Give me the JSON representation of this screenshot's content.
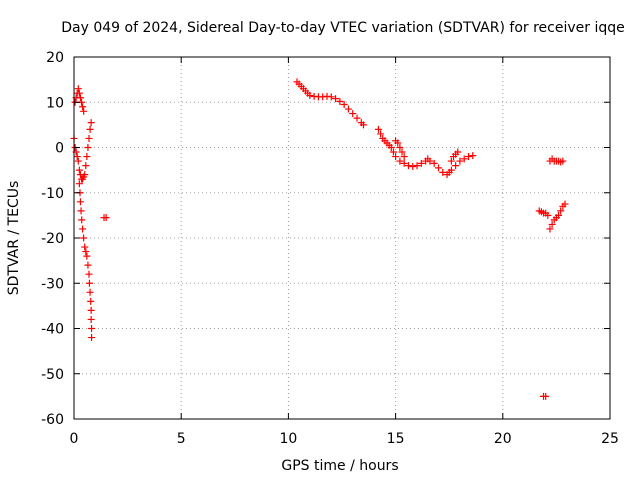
{
  "chart_data": {
    "type": "scatter",
    "title": "Day 049 of 2024, Sidereal Day-to-day VTEC variation (SDTVAR) for receiver iqqe",
    "xlabel": "GPS time / hours",
    "ylabel": "SDTVAR / TECUs",
    "xlim": [
      0,
      25
    ],
    "ylim": [
      -60,
      20
    ],
    "xticks": [
      "0",
      "5",
      "10",
      "15",
      "20",
      "25"
    ],
    "yticks": [
      "20",
      "10",
      "0",
      "-10",
      "-20",
      "-30",
      "-40",
      "-50",
      "-60"
    ],
    "grid": true,
    "marker": "plus",
    "series_color": "#ff0000",
    "segments": [
      {
        "name": "early-top",
        "points": [
          [
            0.05,
            10
          ],
          [
            0.1,
            11
          ],
          [
            0.15,
            12
          ],
          [
            0.2,
            13
          ],
          [
            0.25,
            12
          ],
          [
            0.3,
            11
          ],
          [
            0.35,
            10
          ],
          [
            0.4,
            9
          ],
          [
            0.45,
            8
          ]
        ]
      },
      {
        "name": "early-dip",
        "points": [
          [
            0.0,
            2
          ],
          [
            0.05,
            0
          ],
          [
            0.1,
            -1
          ],
          [
            0.15,
            -2
          ],
          [
            0.2,
            -3
          ],
          [
            0.25,
            -5
          ],
          [
            0.3,
            -6
          ],
          [
            0.35,
            -7
          ],
          [
            0.4,
            -7
          ],
          [
            0.45,
            -6.5
          ],
          [
            0.5,
            -6
          ],
          [
            0.55,
            -4
          ],
          [
            0.6,
            -2
          ],
          [
            0.65,
            0
          ],
          [
            0.7,
            2
          ],
          [
            0.75,
            4
          ],
          [
            0.8,
            5.5
          ]
        ]
      },
      {
        "name": "early-fall",
        "points": [
          [
            0.25,
            -8
          ],
          [
            0.28,
            -10
          ],
          [
            0.3,
            -12
          ],
          [
            0.33,
            -14
          ],
          [
            0.36,
            -16
          ],
          [
            0.4,
            -18
          ],
          [
            0.45,
            -20
          ],
          [
            0.5,
            -22
          ],
          [
            0.55,
            -23
          ],
          [
            0.6,
            -24
          ],
          [
            0.65,
            -26
          ],
          [
            0.7,
            -28
          ],
          [
            0.72,
            -30
          ],
          [
            0.75,
            -32
          ],
          [
            0.78,
            -34
          ],
          [
            0.8,
            -36
          ],
          [
            0.8,
            -38
          ],
          [
            0.82,
            -40
          ],
          [
            0.82,
            -42
          ]
        ]
      },
      {
        "name": "isolated-1",
        "points": [
          [
            1.4,
            -15.5
          ],
          [
            1.5,
            -15.5
          ]
        ]
      },
      {
        "name": "arc-1",
        "points": [
          [
            10.4,
            14.5
          ],
          [
            10.5,
            14
          ],
          [
            10.6,
            13.5
          ],
          [
            10.7,
            13
          ],
          [
            10.8,
            12.5
          ],
          [
            10.9,
            12
          ],
          [
            11.0,
            11.5
          ],
          [
            11.2,
            11.3
          ],
          [
            11.4,
            11.2
          ],
          [
            11.6,
            11.2
          ],
          [
            11.8,
            11.3
          ],
          [
            12.0,
            11.2
          ],
          [
            12.2,
            10.8
          ],
          [
            12.4,
            10.2
          ],
          [
            12.6,
            9.5
          ],
          [
            12.8,
            8.5
          ],
          [
            13.0,
            7.5
          ],
          [
            13.2,
            6.5
          ],
          [
            13.4,
            5.5
          ],
          [
            13.5,
            5
          ]
        ]
      },
      {
        "name": "arc-2",
        "points": [
          [
            14.2,
            4
          ],
          [
            14.3,
            3
          ],
          [
            14.4,
            2
          ],
          [
            14.5,
            1.5
          ],
          [
            14.6,
            1
          ],
          [
            14.7,
            0.5
          ],
          [
            14.8,
            0
          ],
          [
            14.9,
            -1
          ],
          [
            15.0,
            -2
          ],
          [
            15.2,
            -3
          ],
          [
            15.4,
            -3.5
          ],
          [
            15.6,
            -4
          ],
          [
            15.8,
            -4.2
          ],
          [
            16.0,
            -4
          ],
          [
            16.2,
            -3.5
          ],
          [
            16.4,
            -3
          ],
          [
            16.5,
            -2.5
          ],
          [
            16.6,
            -3
          ],
          [
            16.8,
            -3.5
          ],
          [
            17.0,
            -4.5
          ],
          [
            17.2,
            -5.5
          ],
          [
            17.4,
            -6
          ],
          [
            17.5,
            -5.5
          ],
          [
            17.6,
            -5
          ],
          [
            17.8,
            -4
          ],
          [
            18.0,
            -3
          ],
          [
            18.2,
            -2.5
          ],
          [
            18.4,
            -2
          ],
          [
            18.6,
            -1.8
          ]
        ]
      },
      {
        "name": "arc-2-branch",
        "points": [
          [
            15.0,
            1.5
          ],
          [
            15.1,
            1
          ],
          [
            15.2,
            0
          ],
          [
            15.3,
            -1
          ],
          [
            15.4,
            -2
          ],
          [
            17.6,
            -3
          ],
          [
            17.7,
            -2
          ],
          [
            17.8,
            -1.5
          ],
          [
            17.9,
            -1
          ]
        ]
      },
      {
        "name": "late-1",
        "points": [
          [
            21.7,
            -14
          ],
          [
            21.8,
            -14.2
          ],
          [
            21.9,
            -14.5
          ],
          [
            22.0,
            -14.5
          ],
          [
            22.1,
            -15
          ]
        ]
      },
      {
        "name": "late-2",
        "points": [
          [
            22.2,
            -3
          ],
          [
            22.3,
            -2.5
          ],
          [
            22.4,
            -3
          ],
          [
            22.5,
            -3
          ],
          [
            22.6,
            -3
          ],
          [
            22.7,
            -3.2
          ],
          [
            22.8,
            -3
          ]
        ]
      },
      {
        "name": "late-3",
        "points": [
          [
            22.2,
            -18
          ],
          [
            22.3,
            -17
          ],
          [
            22.4,
            -16
          ],
          [
            22.5,
            -15.5
          ],
          [
            22.6,
            -15
          ],
          [
            22.7,
            -14
          ],
          [
            22.8,
            -13
          ],
          [
            22.9,
            -12.5
          ]
        ]
      },
      {
        "name": "isolated-2",
        "points": [
          [
            21.9,
            -55
          ],
          [
            22.0,
            -55
          ]
        ]
      }
    ]
  }
}
